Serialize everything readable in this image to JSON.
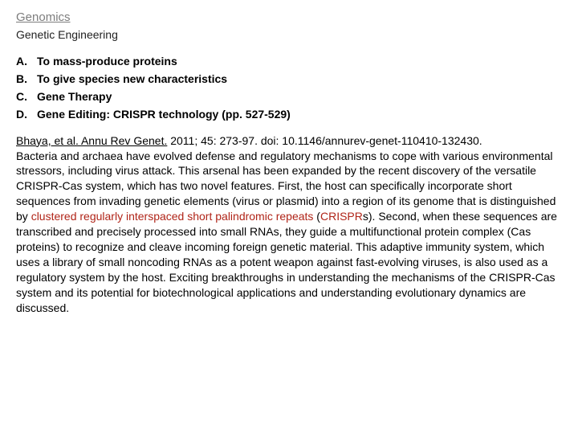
{
  "header": {
    "title1": "Genomics",
    "title2": "Genetic Engineering"
  },
  "list": [
    {
      "letter": "A.",
      "text": "To mass-produce proteins"
    },
    {
      "letter": "B.",
      "text": "To give species new characteristics"
    },
    {
      "letter": "C.",
      "text": "Gene Therapy"
    },
    {
      "letter": "D.",
      "text": "Gene Editing: CRISPR technology  (pp. 527-529)"
    }
  ],
  "citation": {
    "link": "Bhaya, et al. Annu Rev Genet.",
    "rest": " 2011; 45: 273-97. doi: 10.1146/annurev-genet-110410-132430."
  },
  "body": {
    "pre": "Bacteria and archaea have evolved defense and regulatory mechanisms to cope with various environmental stressors, including virus attack. This arsenal has been expanded by the recent discovery of the versatile CRISPR-Cas system, which has two novel features. First, the host can specifically incorporate short sequences from invading genetic elements (virus or plasmid) into a region of its genome that is distinguished by ",
    "term1": "clustered regularly interspaced short palindromic repeats",
    "mid1": " (",
    "term2": "CRISPR",
    "post": "s). Second, when these sequences are transcribed and precisely processed into small RNAs, they guide a multifunctional protein complex (Cas proteins) to recognize and cleave incoming foreign genetic material. This adaptive immunity system, which uses a library of small noncoding RNAs as a potent weapon against fast-evolving viruses, is also used as a regulatory system by the host. Exciting breakthroughs in understanding the mechanisms of the CRISPR-Cas system and its potential for biotechnological applications and understanding evolutionary dynamics are discussed."
  },
  "colors": {
    "heading_gray": "#7d7d7d",
    "crispr_red": "#b02418",
    "text": "#000000",
    "background": "#ffffff"
  }
}
